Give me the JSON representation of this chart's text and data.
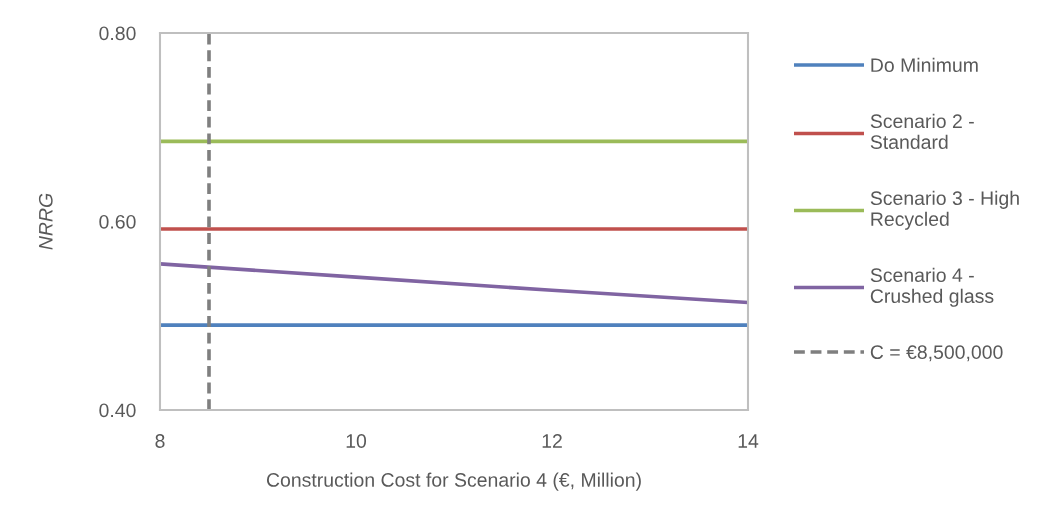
{
  "chart_data": {
    "type": "line",
    "xlabel": "Construction Cost for Scenario 4 (€, Million)",
    "ylabel": "NRRG",
    "x": [
      8,
      10,
      12,
      14
    ],
    "series": [
      {
        "name": "Do Minimum",
        "color": "#4f81bd",
        "values": [
          0.49,
          0.49,
          0.49,
          0.49
        ]
      },
      {
        "name": "Scenario 2 - Standard",
        "color": "#c0504d",
        "values": [
          0.592,
          0.592,
          0.592,
          0.592
        ]
      },
      {
        "name": "Scenario 3 - High Recycled",
        "color": "#9bbb59",
        "values": [
          0.685,
          0.685,
          0.685,
          0.685
        ]
      },
      {
        "name": "Scenario 4 - Crushed glass",
        "color": "#8064a2",
        "values": [
          0.555,
          0.541,
          0.527,
          0.514
        ]
      },
      {
        "name": "C = €8,500,000",
        "color": "#7f7f7f",
        "line_style": "dashed",
        "x": [
          8.5,
          8.5
        ],
        "values": [
          0.4,
          0.8
        ]
      }
    ],
    "xlim": [
      8,
      14
    ],
    "xticks": [
      8,
      10,
      12,
      14
    ],
    "ylim": [
      0.4,
      0.8
    ],
    "yticks": [
      {
        "value": 0.4,
        "label": "0.40"
      },
      {
        "value": 0.6,
        "label": "0.60"
      },
      {
        "value": 0.8,
        "label": "0.80"
      }
    ],
    "grid": false,
    "legend": "right"
  }
}
